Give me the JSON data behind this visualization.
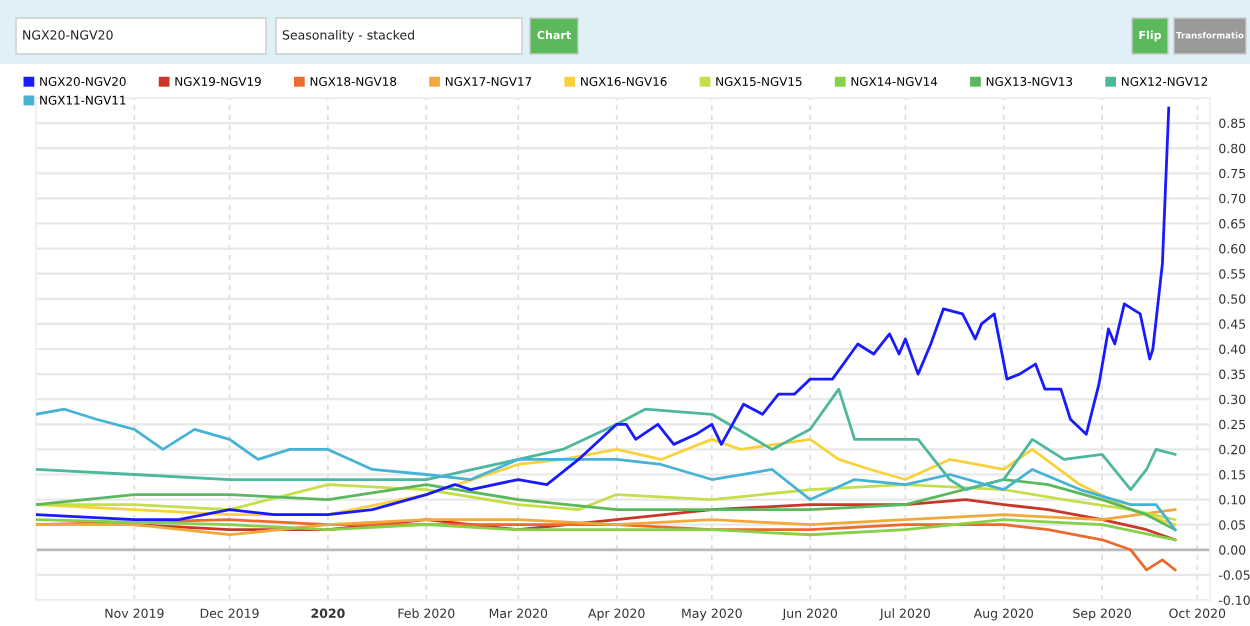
{
  "chart_data": {
    "type": "line",
    "annotations": [
      "NGX20-NGV20",
      "Seasonality - stacked",
      "Chart",
      "Flip",
      "Transformatio"
    ],
    "xlim": [
      "2019-10-01",
      "2020-10-05"
    ],
    "xticks": [
      {
        "value": "2019-11-01",
        "label": "Nov 2019"
      },
      {
        "value": "2019-12-01",
        "label": "Dec 2019"
      },
      {
        "value": "2020-01-01",
        "label": "2020"
      },
      {
        "value": "2020-02-01",
        "label": "Feb 2020"
      },
      {
        "value": "2020-03-01",
        "label": "Mar 2020"
      },
      {
        "value": "2020-04-01",
        "label": "Apr 2020"
      },
      {
        "value": "2020-05-01",
        "label": "May 2020"
      },
      {
        "value": "2020-06-01",
        "label": "Jun 2020"
      },
      {
        "value": "2020-07-01",
        "label": "Jul 2020"
      },
      {
        "value": "2020-08-01",
        "label": "Aug 2020"
      },
      {
        "value": "2020-09-01",
        "label": "Sep 2020"
      },
      {
        "value": "2020-10-01",
        "label": "Oct 2020"
      }
    ],
    "ylim": [
      -0.1,
      0.9
    ],
    "yticks": [
      {
        "value": -0.1,
        "label": "-0.10"
      },
      {
        "value": -0.05,
        "label": "-0.05"
      },
      {
        "value": 0.0,
        "label": "0.00"
      },
      {
        "value": 0.05,
        "label": "0.05"
      },
      {
        "value": 0.1,
        "label": "0.10"
      },
      {
        "value": 0.15,
        "label": "0.15"
      },
      {
        "value": 0.2,
        "label": "0.20"
      },
      {
        "value": 0.25,
        "label": "0.25"
      },
      {
        "value": 0.3,
        "label": "0.30"
      },
      {
        "value": 0.35,
        "label": "0.35"
      },
      {
        "value": 0.4,
        "label": "0.40"
      },
      {
        "value": 0.45,
        "label": "0.45"
      },
      {
        "value": 0.5,
        "label": "0.50"
      },
      {
        "value": 0.55,
        "label": "0.55"
      },
      {
        "value": 0.6,
        "label": "0.60"
      },
      {
        "value": 0.65,
        "label": "0.65"
      },
      {
        "value": 0.7,
        "label": "0.70"
      },
      {
        "value": 0.75,
        "label": "0.75"
      },
      {
        "value": 0.8,
        "label": "0.80"
      },
      {
        "value": 0.85,
        "label": "0.85"
      },
      {
        "value": 0.9,
        "label": null
      }
    ],
    "grid": true,
    "legend": "top",
    "marker": "none",
    "line_style": "solid",
    "ref_lines": [
      {
        "axis": "y",
        "value": 0,
        "color": "#bbbbbb"
      }
    ],
    "series": [
      {
        "name": "NGX20-NGV20",
        "color": "#1a1aff",
        "x": [
          "2019-10-01",
          "2019-11-01",
          "2019-11-15",
          "2019-12-01",
          "2019-12-15",
          "2020-01-01",
          "2020-01-15",
          "2020-02-01",
          "2020-02-10",
          "2020-02-15",
          "2020-03-01",
          "2020-03-10",
          "2020-03-20",
          "2020-04-01",
          "2020-04-04",
          "2020-04-07",
          "2020-04-14",
          "2020-04-19",
          "2020-04-26",
          "2020-05-01",
          "2020-05-04",
          "2020-05-11",
          "2020-05-17",
          "2020-05-22",
          "2020-05-27",
          "2020-06-01",
          "2020-06-08",
          "2020-06-16",
          "2020-06-21",
          "2020-06-26",
          "2020-06-29",
          "2020-07-01",
          "2020-07-05",
          "2020-07-09",
          "2020-07-13",
          "2020-07-19",
          "2020-07-23",
          "2020-07-25",
          "2020-07-29",
          "2020-08-02",
          "2020-08-06",
          "2020-08-11",
          "2020-08-14",
          "2020-08-19",
          "2020-08-22",
          "2020-08-27",
          "2020-08-31",
          "2020-09-03",
          "2020-09-05",
          "2020-09-08",
          "2020-09-13",
          "2020-09-16",
          "2020-09-17",
          "2020-09-20",
          "2020-09-22"
        ],
        "values": [
          0.07,
          0.06,
          0.06,
          0.08,
          0.07,
          0.07,
          0.08,
          0.11,
          0.13,
          0.12,
          0.14,
          0.13,
          0.18,
          0.25,
          0.25,
          0.22,
          0.25,
          0.21,
          0.23,
          0.25,
          0.21,
          0.29,
          0.27,
          0.31,
          0.31,
          0.34,
          0.34,
          0.41,
          0.39,
          0.43,
          0.39,
          0.42,
          0.35,
          0.41,
          0.48,
          0.47,
          0.42,
          0.45,
          0.47,
          0.34,
          0.35,
          0.37,
          0.32,
          0.32,
          0.26,
          0.23,
          0.33,
          0.44,
          0.41,
          0.49,
          0.47,
          0.38,
          0.4,
          0.57,
          0.88
        ]
      },
      {
        "name": "NGX19-NGV19",
        "color": "#c8372a",
        "x": [
          "2019-10-01",
          "2019-11-01",
          "2019-12-01",
          "2020-01-01",
          "2020-02-01",
          "2020-03-01",
          "2020-04-01",
          "2020-05-01",
          "2020-06-01",
          "2020-07-01",
          "2020-07-20",
          "2020-08-01",
          "2020-08-15",
          "2020-09-01",
          "2020-09-15",
          "2020-09-24"
        ],
        "values": [
          0.05,
          0.05,
          0.04,
          0.04,
          0.06,
          0.04,
          0.06,
          0.08,
          0.09,
          0.09,
          0.1,
          0.09,
          0.08,
          0.06,
          0.04,
          0.02
        ]
      },
      {
        "name": "NGX18-NGV18",
        "color": "#ec6a2c",
        "x": [
          "2019-10-01",
          "2019-12-01",
          "2020-01-01",
          "2020-02-01",
          "2020-03-01",
          "2020-04-01",
          "2020-05-01",
          "2020-06-01",
          "2020-07-01",
          "2020-08-01",
          "2020-08-15",
          "2020-09-01",
          "2020-09-10",
          "2020-09-15",
          "2020-09-20",
          "2020-09-24"
        ],
        "values": [
          0.05,
          0.06,
          0.05,
          0.05,
          0.05,
          0.05,
          0.04,
          0.04,
          0.05,
          0.05,
          0.04,
          0.02,
          0.0,
          -0.04,
          -0.02,
          -0.04
        ]
      },
      {
        "name": "NGX17-NGV17",
        "color": "#f2a93b",
        "x": [
          "2019-10-01",
          "2019-11-01",
          "2019-12-01",
          "2020-01-01",
          "2020-02-01",
          "2020-03-01",
          "2020-04-01",
          "2020-05-01",
          "2020-06-01",
          "2020-07-01",
          "2020-08-01",
          "2020-09-01",
          "2020-09-24"
        ],
        "values": [
          0.05,
          0.05,
          0.03,
          0.05,
          0.06,
          0.06,
          0.05,
          0.06,
          0.05,
          0.06,
          0.07,
          0.06,
          0.08
        ]
      },
      {
        "name": "NGX16-NGV16",
        "color": "#f8d23c",
        "x": [
          "2019-10-01",
          "2019-11-01",
          "2019-12-01",
          "2020-01-01",
          "2020-02-01",
          "2020-03-01",
          "2020-03-15",
          "2020-04-01",
          "2020-04-15",
          "2020-05-01",
          "2020-05-10",
          "2020-06-01",
          "2020-06-10",
          "2020-06-20",
          "2020-07-01",
          "2020-07-15",
          "2020-08-01",
          "2020-08-10",
          "2020-08-25",
          "2020-09-10",
          "2020-09-24"
        ],
        "values": [
          0.09,
          0.08,
          0.07,
          0.07,
          0.11,
          0.17,
          0.18,
          0.2,
          0.18,
          0.22,
          0.2,
          0.22,
          0.18,
          0.16,
          0.14,
          0.18,
          0.16,
          0.2,
          0.13,
          0.08,
          0.05
        ]
      },
      {
        "name": "NGX15-NGV15",
        "color": "#c3e04a",
        "x": [
          "2019-10-01",
          "2019-11-01",
          "2019-12-01",
          "2020-01-01",
          "2020-02-01",
          "2020-03-01",
          "2020-03-20",
          "2020-04-01",
          "2020-05-01",
          "2020-06-01",
          "2020-07-01",
          "2020-08-01",
          "2020-08-20",
          "2020-09-10",
          "2020-09-24"
        ],
        "values": [
          0.09,
          0.09,
          0.08,
          0.13,
          0.12,
          0.09,
          0.08,
          0.11,
          0.1,
          0.12,
          0.13,
          0.12,
          0.1,
          0.08,
          0.06
        ]
      },
      {
        "name": "NGX14-NGV14",
        "color": "#86d04a",
        "x": [
          "2019-10-01",
          "2019-12-01",
          "2020-01-01",
          "2020-02-01",
          "2020-03-01",
          "2020-04-01",
          "2020-05-01",
          "2020-06-01",
          "2020-07-01",
          "2020-08-01",
          "2020-09-01",
          "2020-09-24"
        ],
        "values": [
          0.06,
          0.05,
          0.04,
          0.05,
          0.04,
          0.04,
          0.04,
          0.03,
          0.04,
          0.06,
          0.05,
          0.02
        ]
      },
      {
        "name": "NGX13-NGV13",
        "color": "#5cb85c",
        "x": [
          "2019-10-01",
          "2019-11-01",
          "2019-12-01",
          "2020-01-01",
          "2020-02-01",
          "2020-03-01",
          "2020-04-01",
          "2020-05-01",
          "2020-06-01",
          "2020-07-01",
          "2020-08-01",
          "2020-08-15",
          "2020-09-01",
          "2020-09-15",
          "2020-09-24"
        ],
        "values": [
          0.09,
          0.11,
          0.11,
          0.1,
          0.13,
          0.1,
          0.08,
          0.08,
          0.08,
          0.09,
          0.14,
          0.13,
          0.1,
          0.07,
          0.04
        ]
      },
      {
        "name": "NGX12-NGV12",
        "color": "#4db89c",
        "x": [
          "2019-10-01",
          "2019-11-01",
          "2019-12-01",
          "2020-01-01",
          "2020-02-01",
          "2020-03-01",
          "2020-03-15",
          "2020-04-01",
          "2020-04-10",
          "2020-05-01",
          "2020-05-20",
          "2020-06-01",
          "2020-06-10",
          "2020-06-15",
          "2020-06-25",
          "2020-07-05",
          "2020-07-15",
          "2020-07-20",
          "2020-08-01",
          "2020-08-10",
          "2020-08-20",
          "2020-09-01",
          "2020-09-10",
          "2020-09-15",
          "2020-09-18",
          "2020-09-24"
        ],
        "values": [
          0.16,
          0.15,
          0.14,
          0.14,
          0.14,
          0.18,
          0.2,
          0.25,
          0.28,
          0.27,
          0.2,
          0.24,
          0.32,
          0.22,
          0.22,
          0.22,
          0.14,
          0.12,
          0.14,
          0.22,
          0.18,
          0.19,
          0.12,
          0.16,
          0.2,
          0.19
        ]
      },
      {
        "name": "NGX11-NGV11",
        "color": "#46b3d6",
        "x": [
          "2019-10-01",
          "2019-10-10",
          "2019-10-20",
          "2019-11-01",
          "2019-11-10",
          "2019-11-20",
          "2019-12-01",
          "2019-12-10",
          "2019-12-20",
          "2020-01-01",
          "2020-01-15",
          "2020-02-01",
          "2020-02-15",
          "2020-03-01",
          "2020-03-15",
          "2020-04-01",
          "2020-04-15",
          "2020-05-01",
          "2020-05-20",
          "2020-06-01",
          "2020-06-15",
          "2020-07-01",
          "2020-07-15",
          "2020-08-01",
          "2020-08-10",
          "2020-08-25",
          "2020-09-10",
          "2020-09-18",
          "2020-09-24"
        ],
        "values": [
          0.27,
          0.28,
          0.26,
          0.24,
          0.2,
          0.24,
          0.22,
          0.18,
          0.2,
          0.2,
          0.16,
          0.15,
          0.14,
          0.18,
          0.18,
          0.18,
          0.17,
          0.14,
          0.16,
          0.1,
          0.14,
          0.13,
          0.15,
          0.12,
          0.16,
          0.12,
          0.09,
          0.09,
          0.04
        ]
      }
    ]
  }
}
